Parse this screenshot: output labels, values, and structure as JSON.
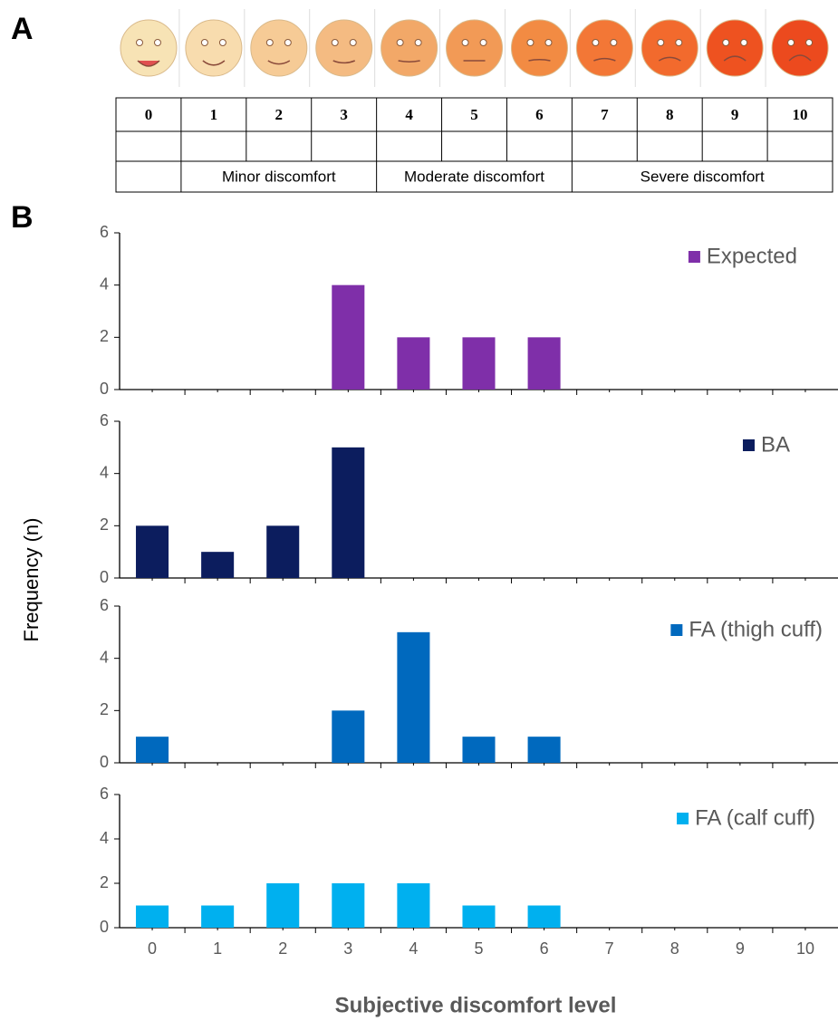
{
  "figure": {
    "panel_labels": [
      "A",
      "B"
    ],
    "ylabel": "Frequency (n)",
    "xlabel": "Subjective discomfort level"
  },
  "scale_table": {
    "levels": [
      0,
      1,
      2,
      3,
      4,
      5,
      6,
      7,
      8,
      9,
      10
    ],
    "groups": [
      "Minor discomfort",
      "Moderate discomfort",
      "Severe discomfort"
    ]
  },
  "chart_data": [
    {
      "type": "bar",
      "x": [
        0,
        1,
        2,
        3,
        4,
        5,
        6,
        7,
        8,
        9,
        10
      ],
      "series": [
        {
          "name": "Expected",
          "color": "#7f2fa9",
          "values": [
            0,
            0,
            0,
            4,
            2,
            2,
            2,
            0,
            0,
            0,
            0
          ]
        }
      ],
      "xlim": [
        -0.5,
        10.5
      ],
      "xticks": [
        0,
        1,
        2,
        3,
        4,
        5,
        6,
        7,
        8,
        9,
        10
      ],
      "ylim": [
        0,
        6
      ],
      "yticks": [
        0,
        2,
        4,
        6
      ]
    },
    {
      "type": "bar",
      "x": [
        0,
        1,
        2,
        3,
        4,
        5,
        6,
        7,
        8,
        9,
        10
      ],
      "series": [
        {
          "name": "BA",
          "color": "#0c1d5e",
          "values": [
            2,
            1,
            2,
            5,
            0,
            0,
            0,
            0,
            0,
            0,
            0
          ]
        }
      ],
      "xlim": [
        -0.5,
        10.5
      ],
      "xticks": [
        0,
        1,
        2,
        3,
        4,
        5,
        6,
        7,
        8,
        9,
        10
      ],
      "ylim": [
        0,
        6
      ],
      "yticks": [
        0,
        2,
        4,
        6
      ]
    },
    {
      "type": "bar",
      "x": [
        0,
        1,
        2,
        3,
        4,
        5,
        6,
        7,
        8,
        9,
        10
      ],
      "series": [
        {
          "name": "FA (thigh cuff)",
          "color": "#0069be",
          "values": [
            1,
            0,
            0,
            2,
            5,
            1,
            1,
            0,
            0,
            0,
            0
          ]
        }
      ],
      "xlim": [
        -0.5,
        10.5
      ],
      "xticks": [
        0,
        1,
        2,
        3,
        4,
        5,
        6,
        7,
        8,
        9,
        10
      ],
      "ylim": [
        0,
        6
      ],
      "yticks": [
        0,
        2,
        4,
        6
      ]
    },
    {
      "type": "bar",
      "x": [
        0,
        1,
        2,
        3,
        4,
        5,
        6,
        7,
        8,
        9,
        10
      ],
      "series": [
        {
          "name": "FA (calf cuff)",
          "color": "#00b0ef",
          "values": [
            1,
            1,
            2,
            2,
            2,
            1,
            1,
            0,
            0,
            0,
            0
          ]
        }
      ],
      "xlim": [
        -0.5,
        10.5
      ],
      "xticks": [
        0,
        1,
        2,
        3,
        4,
        5,
        6,
        7,
        8,
        9,
        10
      ],
      "ylim": [
        0,
        6
      ],
      "yticks": [
        0,
        2,
        4,
        6
      ]
    }
  ]
}
